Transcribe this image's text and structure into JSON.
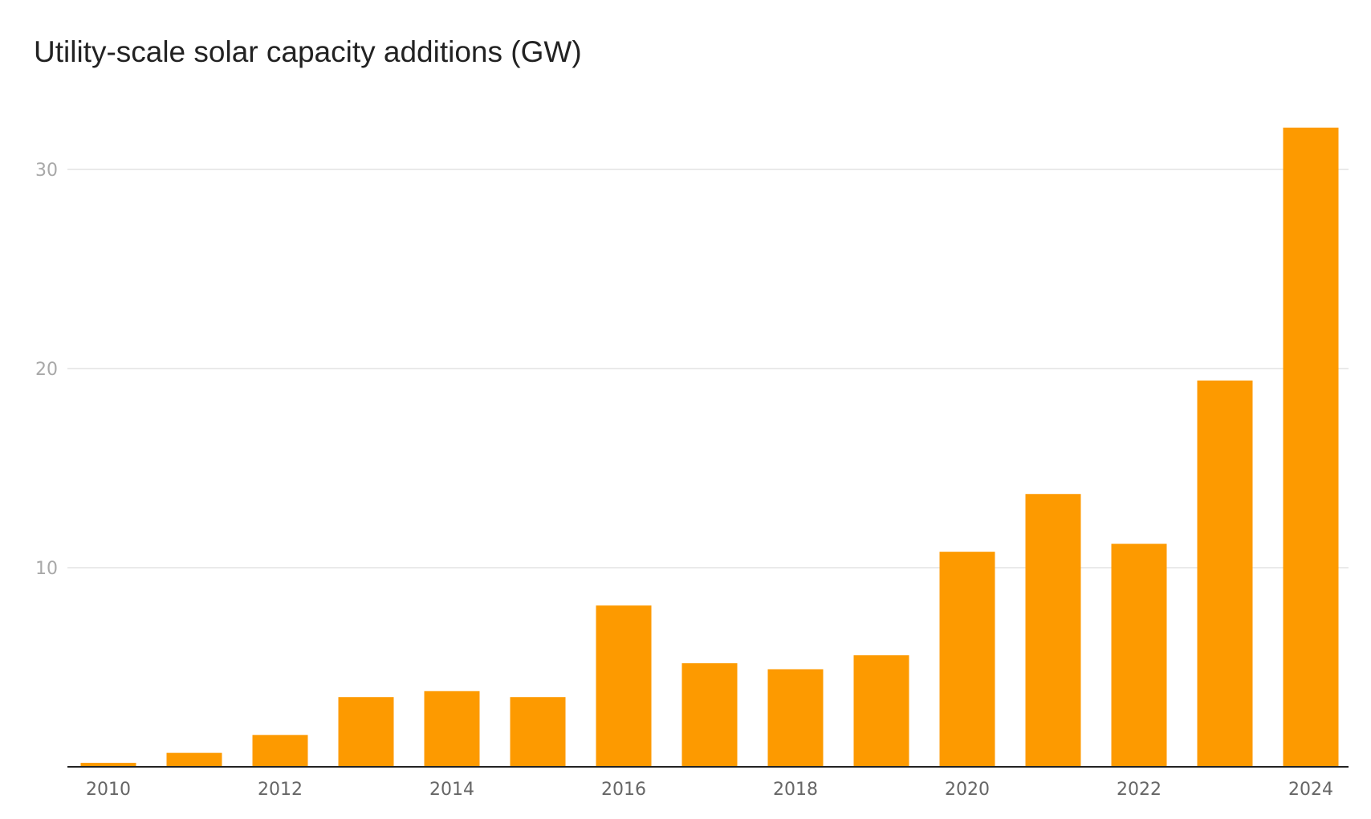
{
  "chart_data": {
    "type": "bar",
    "title": "Utility-scale solar capacity additions (GW)",
    "xlabel": "",
    "ylabel": "",
    "categories": [
      "2010",
      "2011",
      "2012",
      "2013",
      "2014",
      "2015",
      "2016",
      "2017",
      "2018",
      "2019",
      "2020",
      "2021",
      "2022",
      "2023",
      "2024"
    ],
    "values": [
      0.2,
      0.7,
      1.6,
      3.5,
      3.8,
      3.5,
      8.1,
      5.2,
      4.9,
      5.6,
      10.8,
      13.7,
      11.2,
      19.4,
      32.1
    ],
    "x_tick_labels": [
      "2010",
      "2012",
      "2014",
      "2016",
      "2018",
      "2020",
      "2022",
      "2024"
    ],
    "y_ticks": [
      10,
      20,
      30
    ],
    "ylim": [
      0,
      33
    ],
    "grid": true,
    "colors": {
      "bar": "#fd9a00",
      "gridline": "#e3e3e3",
      "axis": "#222222",
      "y_tick_text": "#a8a8a8",
      "x_tick_text": "#666666",
      "title_text": "#222222"
    }
  }
}
